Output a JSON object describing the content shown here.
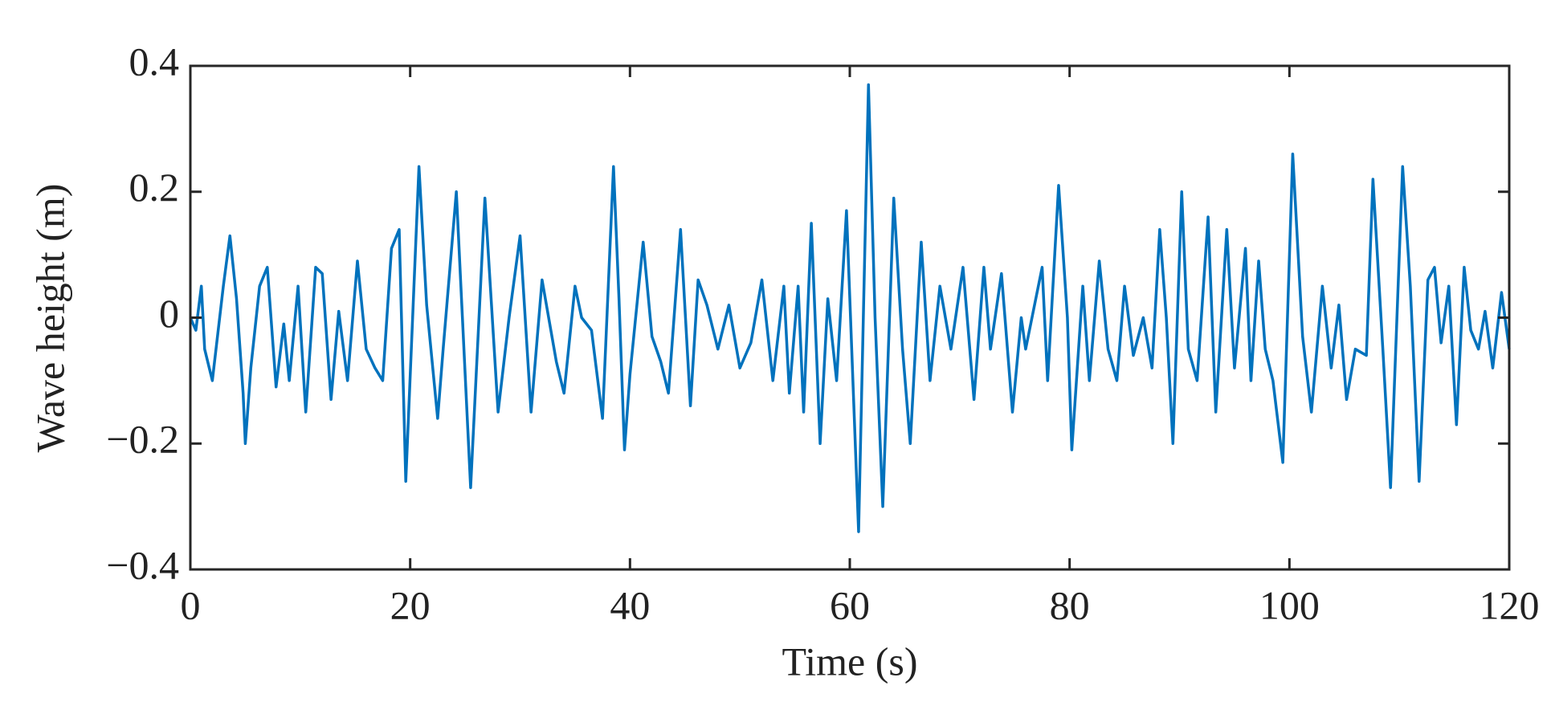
{
  "chart_data": {
    "type": "line",
    "xlabel": "Time (s)",
    "ylabel": "Wave height (m)",
    "color": "#0072bd",
    "xlim": [
      0,
      120
    ],
    "ylim": [
      -0.4,
      0.4
    ],
    "xticks": [
      0,
      20,
      40,
      60,
      80,
      100,
      120
    ],
    "yticks": [
      {
        "value": -0.4,
        "label": "−0.4"
      },
      {
        "value": -0.2,
        "label": "−0.2"
      },
      0,
      0.2,
      0.4
    ],
    "grid": false,
    "x": [
      0,
      0.5,
      1.0,
      1.3,
      2.0,
      3.0,
      3.6,
      4.2,
      4.8,
      5.0,
      5.5,
      6.3,
      7.0,
      7.8,
      8.5,
      9.0,
      9.8,
      10.5,
      11.4,
      12.0,
      12.8,
      13.5,
      14.3,
      15.2,
      16.0,
      16.8,
      17.5,
      18.3,
      19.0,
      19.6,
      20.8,
      21.5,
      22.5,
      23.0,
      24.2,
      25.5,
      26.8,
      28.0,
      29.0,
      30.0,
      31.0,
      32.0,
      33.3,
      34.0,
      35.0,
      35.6,
      36.5,
      37.5,
      38.5,
      39.0,
      39.5,
      40.0,
      41.2,
      42.0,
      42.8,
      43.5,
      44.6,
      45.5,
      46.2,
      47.0,
      48.0,
      49.0,
      50.0,
      51.0,
      52.0,
      52.5,
      53.0,
      54.0,
      54.5,
      55.3,
      55.8,
      56.5,
      57.3,
      58.0,
      58.8,
      59.7,
      60.8,
      61.7,
      62.3,
      63.0,
      64.0,
      64.8,
      65.5,
      66.5,
      67.3,
      68.2,
      69.2,
      70.3,
      71.3,
      72.2,
      72.8,
      73.8,
      74.8,
      75.6,
      76.0,
      77.5,
      78.0,
      79.0,
      79.8,
      80.2,
      81.2,
      81.8,
      82.7,
      83.5,
      84.3,
      85.0,
      85.8,
      86.7,
      87.5,
      88.2,
      88.8,
      89.4,
      90.2,
      90.8,
      91.6,
      92.6,
      93.3,
      94.3,
      95.0,
      96.0,
      96.5,
      97.2,
      97.8,
      98.5,
      99.4,
      100.3,
      101.2,
      102.0,
      103.0,
      103.8,
      104.5,
      105.2,
      106.0,
      107.0,
      107.6,
      108.5,
      109.2,
      110.3,
      111.0,
      111.8,
      112.6,
      113.2,
      113.8,
      114.5,
      115.2,
      115.9,
      116.5,
      117.2,
      117.8,
      118.5,
      119.3,
      120.0
    ],
    "values": [
      0.0,
      -0.02,
      0.05,
      -0.05,
      -0.1,
      0.05,
      0.13,
      0.03,
      -0.12,
      -0.2,
      -0.08,
      0.05,
      0.08,
      -0.11,
      -0.01,
      -0.1,
      0.05,
      -0.15,
      0.08,
      0.07,
      -0.13,
      0.01,
      -0.1,
      0.09,
      -0.05,
      -0.08,
      -0.1,
      0.11,
      0.14,
      -0.26,
      0.24,
      0.02,
      -0.16,
      -0.05,
      0.2,
      -0.27,
      0.19,
      -0.15,
      0.0,
      0.13,
      -0.15,
      0.06,
      -0.07,
      -0.12,
      0.05,
      0.0,
      -0.02,
      -0.16,
      0.24,
      0.03,
      -0.21,
      -0.09,
      0.12,
      -0.03,
      -0.07,
      -0.12,
      0.14,
      -0.14,
      0.06,
      0.02,
      -0.05,
      0.02,
      -0.08,
      -0.04,
      0.06,
      -0.02,
      -0.1,
      0.05,
      -0.12,
      0.05,
      -0.15,
      0.15,
      -0.2,
      0.03,
      -0.1,
      0.17,
      -0.34,
      0.37,
      0.0,
      -0.3,
      0.19,
      -0.05,
      -0.2,
      0.12,
      -0.1,
      0.05,
      -0.05,
      0.08,
      -0.13,
      0.08,
      -0.05,
      0.07,
      -0.15,
      0.0,
      -0.05,
      0.08,
      -0.1,
      0.21,
      0.0,
      -0.21,
      0.05,
      -0.1,
      0.09,
      -0.05,
      -0.1,
      0.05,
      -0.06,
      0.0,
      -0.08,
      0.14,
      0.0,
      -0.2,
      0.2,
      -0.05,
      -0.1,
      0.16,
      -0.15,
      0.14,
      -0.08,
      0.11,
      -0.1,
      0.09,
      -0.05,
      -0.1,
      -0.23,
      0.26,
      -0.03,
      -0.15,
      0.05,
      -0.08,
      0.02,
      -0.13,
      -0.05,
      -0.06,
      0.22,
      -0.05,
      -0.27,
      0.24,
      0.05,
      -0.26,
      0.06,
      0.08,
      -0.04,
      0.05,
      -0.17,
      0.08,
      -0.02,
      -0.05,
      0.01,
      -0.08,
      0.04,
      -0.05
    ]
  }
}
